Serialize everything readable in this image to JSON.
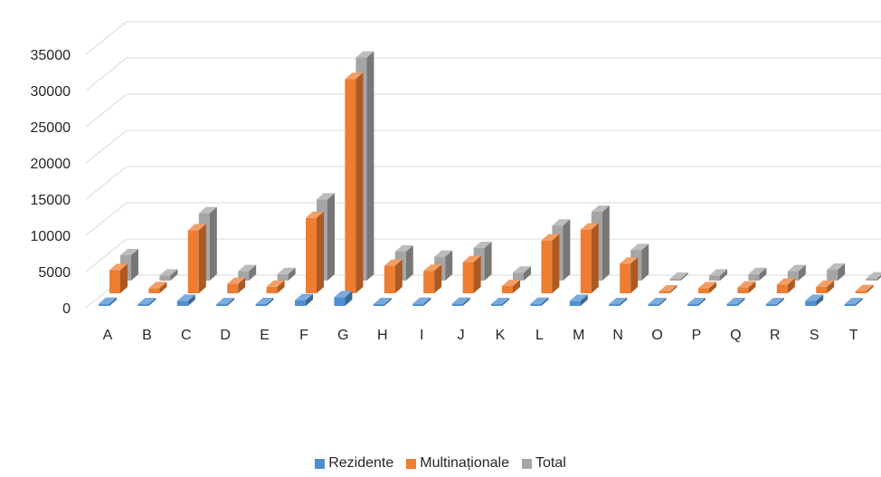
{
  "chart_data": {
    "type": "bar",
    "style": "3d-clustered-column",
    "categories": [
      "A",
      "B",
      "C",
      "D",
      "E",
      "F",
      "G",
      "H",
      "I",
      "J",
      "K",
      "L",
      "M",
      "N",
      "O",
      "P",
      "Q",
      "R",
      "S",
      "T",
      ""
    ],
    "series": [
      {
        "name": "Rezidente",
        "color": "#4f8fd1",
        "values": [
          300,
          100,
          700,
          100,
          100,
          800,
          1200,
          200,
          300,
          300,
          200,
          300,
          700,
          200,
          100,
          100,
          200,
          150,
          700,
          100,
          50
        ]
      },
      {
        "name": "Multinaționale",
        "color": "#ed7d31",
        "values": [
          3200,
          700,
          8700,
          1300,
          900,
          10400,
          29600,
          3800,
          3100,
          4300,
          1000,
          7300,
          8800,
          4100,
          150,
          700,
          800,
          1200,
          900,
          300,
          200
        ]
      },
      {
        "name": "Total",
        "color": "#a5a5a5",
        "values": [
          3500,
          700,
          9300,
          1300,
          900,
          11200,
          30800,
          4000,
          3300,
          4500,
          1100,
          7600,
          9500,
          4200,
          150,
          700,
          900,
          1300,
          1500,
          300,
          200
        ]
      }
    ],
    "ylim": [
      0,
      35000
    ],
    "yticks": [
      "0",
      "5000",
      "10000",
      "15000",
      "20000",
      "25000",
      "30000",
      "35000"
    ],
    "grid": true,
    "legend": "bottom"
  }
}
